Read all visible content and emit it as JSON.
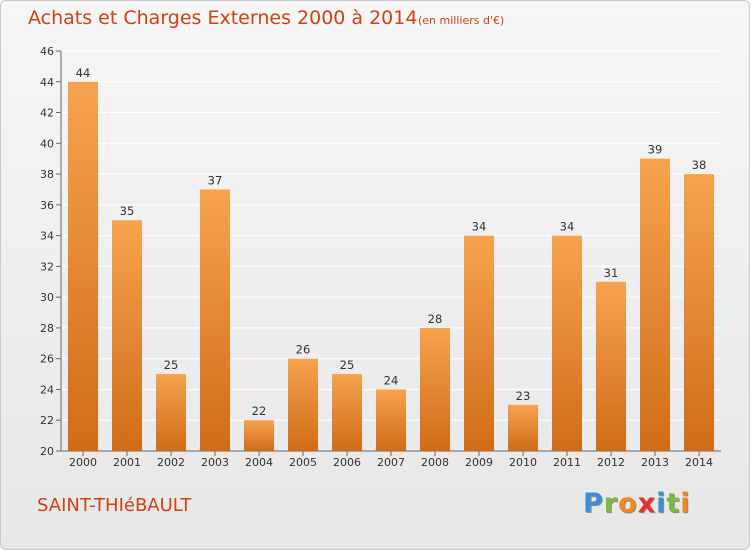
{
  "header": {
    "title": "Achats et Charges Externes 2000 à 2014",
    "subtitle": "(en milliers d'€)"
  },
  "footer": {
    "commune": "SAINT-THIéBAULT",
    "brand_letters": [
      "P",
      "r",
      "o",
      "x",
      "i",
      "t",
      "i"
    ],
    "brand_colors": [
      "#3d8fd6",
      "#7cb940",
      "#f08a1c",
      "#e4312b",
      "#3d8fd6",
      "#7cb940",
      "#f08a1c"
    ]
  },
  "colors": {
    "bar_light": "#f6a24f",
    "bar_dark": "#d06c17",
    "title": "#d13f13",
    "grid": "#ffffff"
  },
  "chart_data": {
    "type": "bar",
    "title": "Achats et Charges Externes 2000 à 2014",
    "subtitle": "(en milliers d'€)",
    "categories": [
      "2000",
      "2001",
      "2002",
      "2003",
      "2004",
      "2005",
      "2006",
      "2007",
      "2008",
      "2009",
      "2010",
      "2011",
      "2012",
      "2013",
      "2014"
    ],
    "values": [
      44,
      35,
      25,
      37,
      22,
      26,
      25,
      24,
      28,
      34,
      23,
      34,
      31,
      39,
      38
    ],
    "yticks": [
      20,
      22,
      24,
      26,
      28,
      30,
      32,
      34,
      36,
      38,
      40,
      42,
      44,
      46
    ],
    "ylim": [
      20,
      46
    ],
    "xlabel": "",
    "ylabel": "",
    "grid": true
  }
}
